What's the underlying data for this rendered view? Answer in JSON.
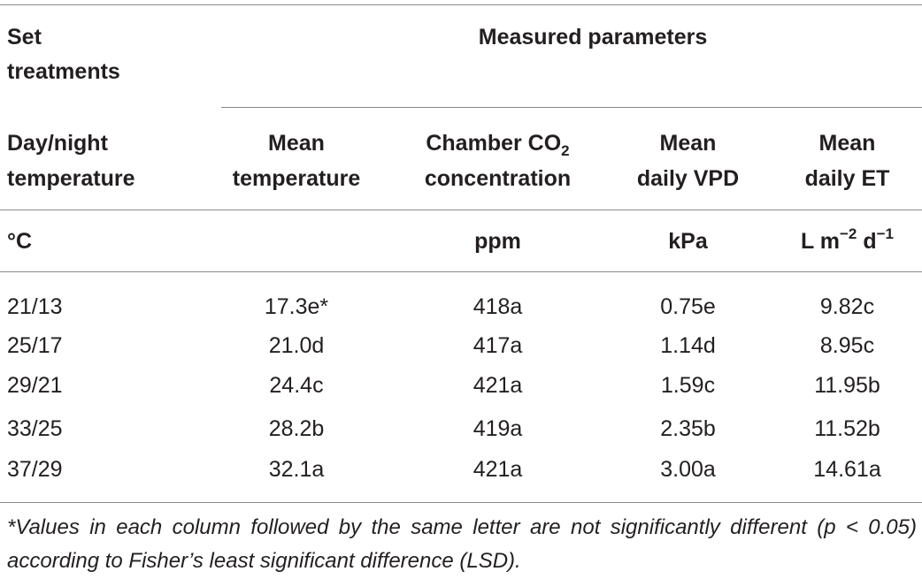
{
  "header": {
    "group_col_label_line1": "Set",
    "group_col_label_line2": "treatments",
    "group_label": "Measured parameters",
    "columns": [
      {
        "line1": "Day/night",
        "line2": "temperature",
        "unit": "°C"
      },
      {
        "line1": "Mean",
        "line2": "temperature",
        "unit": ""
      },
      {
        "line1": "Chamber CO",
        "line1_sub": "2",
        "line2": "concentration",
        "unit": "ppm"
      },
      {
        "line1": "Mean",
        "line2": "daily VPD",
        "unit": "kPa"
      },
      {
        "line1": "Mean",
        "line2": "daily ET",
        "unit_base": "L m",
        "unit_exp1": "−2",
        "unit_mid": " d",
        "unit_exp2": "−1"
      }
    ]
  },
  "rows": [
    {
      "cells": [
        "21/13",
        "17.3e*",
        "418a",
        "0.75e",
        "9.82c"
      ]
    },
    {
      "cells": [
        "25/17",
        "21.0d",
        "417a",
        "1.14d",
        "8.95c"
      ]
    },
    {
      "cells": [
        "29/21",
        "24.4c",
        "421a",
        "1.59c",
        "11.95b"
      ]
    },
    {
      "cells": [
        "33/25",
        "28.2b",
        "419a",
        "2.35b",
        "11.52b"
      ]
    },
    {
      "cells": [
        "37/29",
        "32.1a",
        "421a",
        "3.00a",
        "14.61a"
      ]
    }
  ],
  "footnote": "*Values in each column followed by the same letter are not significantly different (p < 0.05) according to Fisher’s least significant difference (LSD)."
}
